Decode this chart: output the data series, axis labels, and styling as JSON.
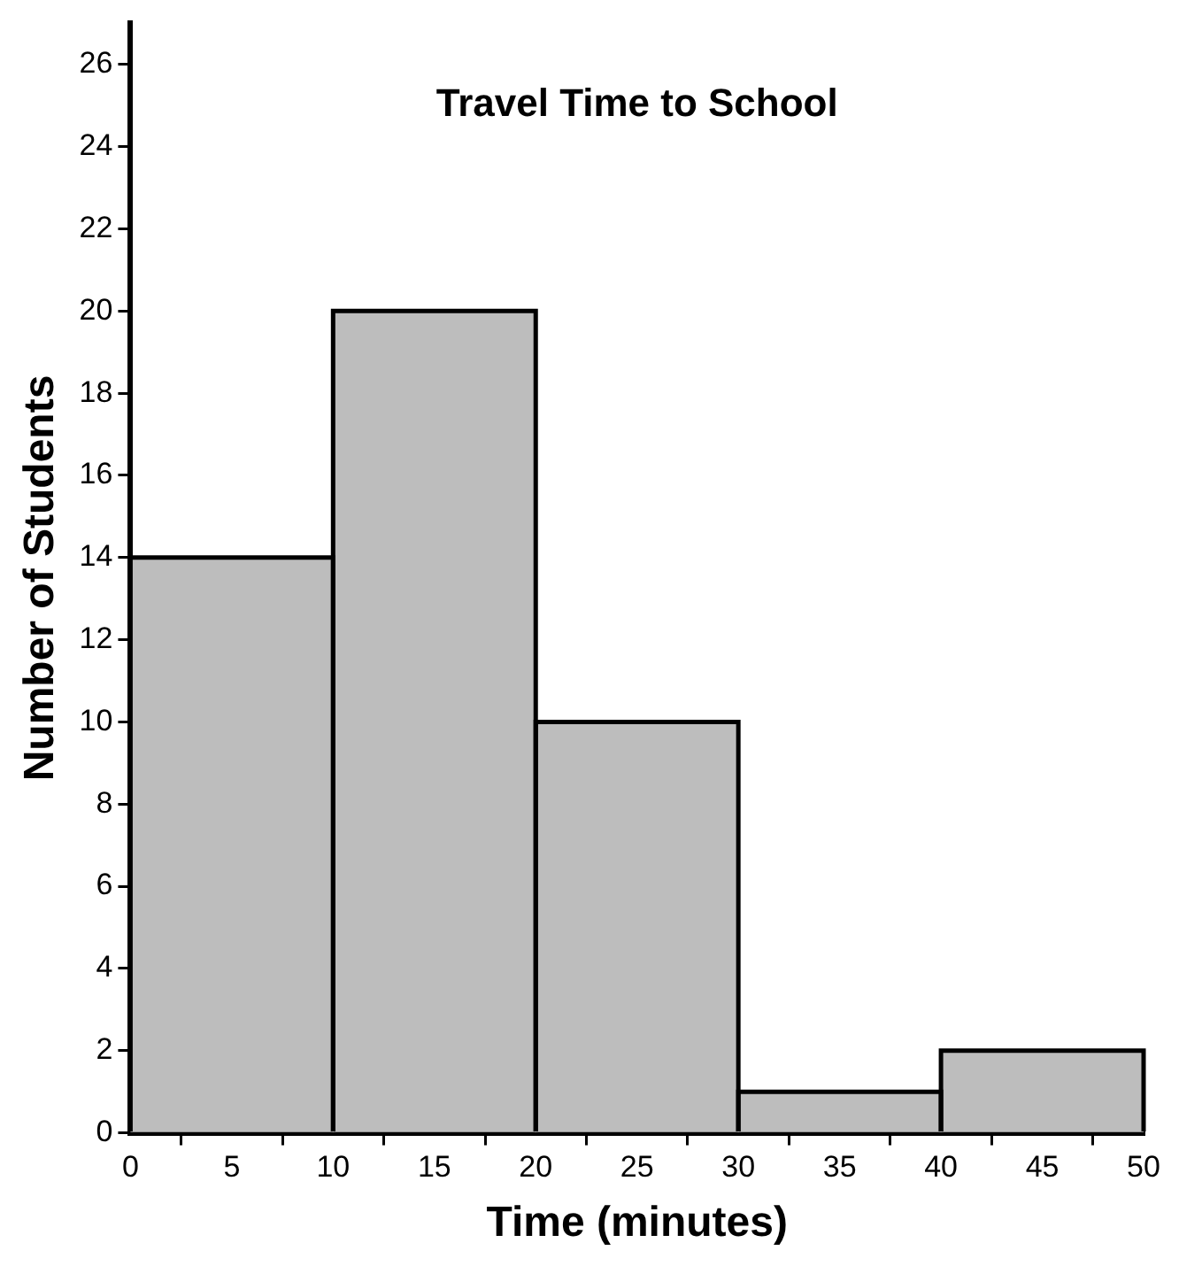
{
  "chart_data": {
    "type": "histogram",
    "title": "Travel Time to School",
    "xlabel": "Time (minutes)",
    "ylabel": "Number of Students",
    "bins": [
      0,
      10,
      20,
      30,
      40,
      50
    ],
    "values": [
      14,
      20,
      10,
      1,
      2
    ],
    "color": "#bdbdbd",
    "xlim": [
      0,
      50
    ],
    "xticks": [
      0,
      5,
      10,
      15,
      20,
      25,
      30,
      35,
      40,
      45,
      50
    ],
    "ylim": [
      0,
      27
    ],
    "yticks": [
      0,
      2,
      4,
      6,
      8,
      10,
      12,
      14,
      16,
      18,
      20,
      22,
      24,
      26
    ],
    "grid": false,
    "legend": false
  }
}
